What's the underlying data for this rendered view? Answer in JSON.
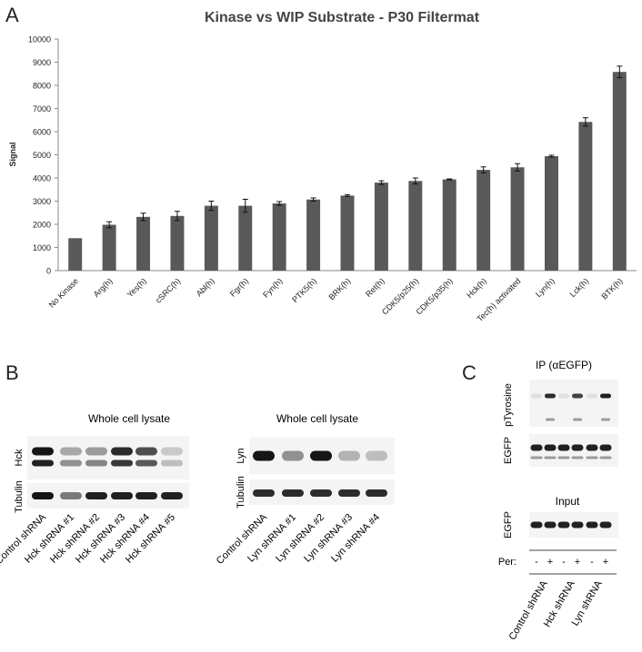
{
  "panels": {
    "a": {
      "letter": "A"
    },
    "b": {
      "letter": "B",
      "left": {
        "title": "Whole cell lysate",
        "row_labels": [
          "Hck",
          "Tubulin"
        ],
        "lanes": [
          "Control shRNA",
          "Hck shRNA #1",
          "Hck shRNA #2",
          "Hck shRNA #3",
          "Hck shRNA #4",
          "Hck shRNA #5"
        ]
      },
      "right": {
        "title": "Whole cell lysate",
        "row_labels": [
          "Lyn",
          "Tubulin"
        ],
        "lanes": [
          "Control shRNA",
          "Lyn shRNA #1",
          "Lyn shRNA #2",
          "Lyn shRNA #3",
          "Lyn shRNA #4"
        ]
      }
    },
    "c": {
      "letter": "C",
      "ip_title": "IP (αEGFP)",
      "ip_rows": [
        "pTyrosine",
        "EGFP"
      ],
      "input_title": "Input",
      "input_rows": [
        "EGFP"
      ],
      "per_label": "Per:",
      "per_signs": [
        "-",
        "+",
        "-",
        "+",
        "-",
        "+"
      ],
      "lanes": [
        "Control shRNA",
        "Hck shRNA",
        "Lyn shRNA"
      ]
    }
  },
  "chart_data": {
    "type": "bar",
    "title": "Kinase vs WIP Substrate - P30 Filtermat",
    "xlabel": "",
    "ylabel": "Signal",
    "ylim": [
      0,
      10000
    ],
    "yticks": [
      "0",
      "1000",
      "2000",
      "3000",
      "4000",
      "5000",
      "6000",
      "7000",
      "8000",
      "9000",
      "10000"
    ],
    "categories": [
      "No Kinase",
      "Arg(h)",
      "Yes(h)",
      "cSRC(h)",
      "Abl(h)",
      "Fgr(h)",
      "Fyn(h)",
      "PTK5(h)",
      "BRK(h)",
      "Ret(h)",
      "CDK5/p25(h)",
      "CDK5/p35(h)",
      "Hck(h)",
      "Tec(h) activated",
      "Lyn(h)",
      "Lck(h)",
      "BTK(h)"
    ],
    "values": [
      1400,
      1980,
      2320,
      2360,
      2800,
      2800,
      2900,
      3070,
      3240,
      3800,
      3870,
      3940,
      4350,
      4460,
      4940,
      6420,
      8580
    ],
    "errors": [
      0,
      130,
      160,
      200,
      200,
      280,
      80,
      70,
      40,
      80,
      130,
      20,
      130,
      160,
      40,
      180,
      250
    ],
    "bar_color": "#595959",
    "grid": false,
    "legend": "none"
  }
}
